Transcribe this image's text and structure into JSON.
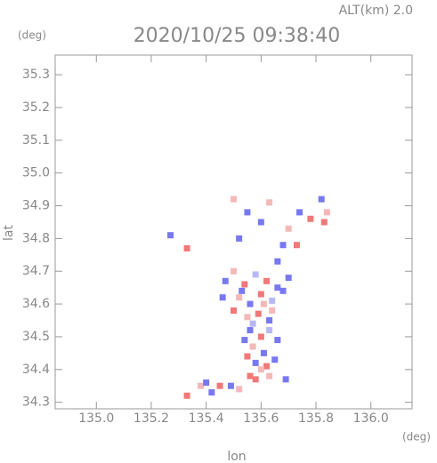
{
  "chart_data": {
    "type": "scatter",
    "title": "2020/10/25 09:38:40",
    "subtitle": "ALT(km) 2.0",
    "x_unit": "(deg)",
    "y_unit": "(deg)",
    "x_label": "lon",
    "y_label": "lat",
    "xlim": [
      134.85,
      136.15
    ],
    "ylim": [
      34.28,
      35.36
    ],
    "xticks": [
      {
        "value": 135,
        "label": "135.0"
      },
      135.2,
      135.4,
      135.6,
      135.8,
      {
        "value": 136,
        "label": "136.0"
      }
    ],
    "yticks": [
      34.3,
      34.4,
      34.5,
      34.6,
      34.7,
      34.8,
      34.9,
      {
        "value": 35,
        "label": "35.0"
      },
      35.1,
      35.2,
      35.3
    ],
    "x": [
      135.5,
      135.55,
      135.63,
      135.6,
      135.52,
      135.68,
      135.7,
      135.74,
      135.78,
      135.82,
      135.84,
      135.83,
      135.73,
      135.66,
      135.27,
      135.33,
      135.47,
      135.5,
      135.54,
      135.58,
      135.62,
      135.66,
      135.7,
      135.52,
      135.56,
      135.6,
      135.64,
      135.68,
      135.46,
      135.5,
      135.55,
      135.59,
      135.63,
      135.56,
      135.6,
      135.63,
      135.66,
      135.57,
      135.61,
      135.55,
      135.58,
      135.62,
      135.65,
      135.56,
      135.58,
      135.63,
      135.69,
      135.52,
      135.49,
      135.42,
      135.38,
      135.33,
      135.45,
      135.4,
      135.64,
      135.53,
      135.61,
      135.57,
      135.54,
      135.6
    ],
    "y": [
      34.92,
      34.88,
      34.91,
      34.85,
      34.8,
      34.78,
      34.83,
      34.88,
      34.86,
      34.92,
      34.88,
      34.85,
      34.78,
      34.73,
      34.81,
      34.77,
      34.67,
      34.7,
      34.66,
      34.69,
      34.67,
      34.65,
      34.68,
      34.62,
      34.6,
      34.63,
      34.61,
      34.64,
      34.62,
      34.58,
      34.56,
      34.57,
      34.55,
      34.52,
      34.5,
      34.52,
      34.49,
      34.47,
      34.45,
      34.44,
      34.42,
      34.41,
      34.43,
      34.38,
      34.37,
      34.38,
      34.37,
      34.34,
      34.35,
      34.33,
      34.35,
      34.32,
      34.35,
      34.36,
      34.58,
      34.64,
      34.6,
      34.54,
      34.49,
      34.4
    ],
    "colors": [
      "#f4b8b8",
      "#7878f0",
      "#f4b8b8",
      "#7878f0",
      "#7878f0",
      "#7878f0",
      "#f4b8b8",
      "#7878f0",
      "#f07878",
      "#7878f0",
      "#f4b8b8",
      "#f07878",
      "#f07878",
      "#7878f0",
      "#7878f0",
      "#f07878",
      "#7878f0",
      "#f4b8b8",
      "#f07878",
      "#b8b8f4",
      "#f07878",
      "#7878f0",
      "#7878f0",
      "#f4b8b8",
      "#7878f0",
      "#f07878",
      "#b8b8f4",
      "#7878f0",
      "#7878f0",
      "#f07878",
      "#f4b8b8",
      "#f07878",
      "#7878f0",
      "#7878f0",
      "#f07878",
      "#b8b8f4",
      "#7878f0",
      "#f4b8b8",
      "#7878f0",
      "#f07878",
      "#7878f0",
      "#f07878",
      "#7878f0",
      "#f07878",
      "#f07878",
      "#f4b8b8",
      "#7878f0",
      "#f4b8b8",
      "#7878f0",
      "#7878f0",
      "#f4b8b8",
      "#f07878",
      "#f07878",
      "#7878f0",
      "#f4b8b8",
      "#7878f0",
      "#f4b8b8",
      "#b8b8f4",
      "#7878f0",
      "#f4b8b8"
    ]
  }
}
